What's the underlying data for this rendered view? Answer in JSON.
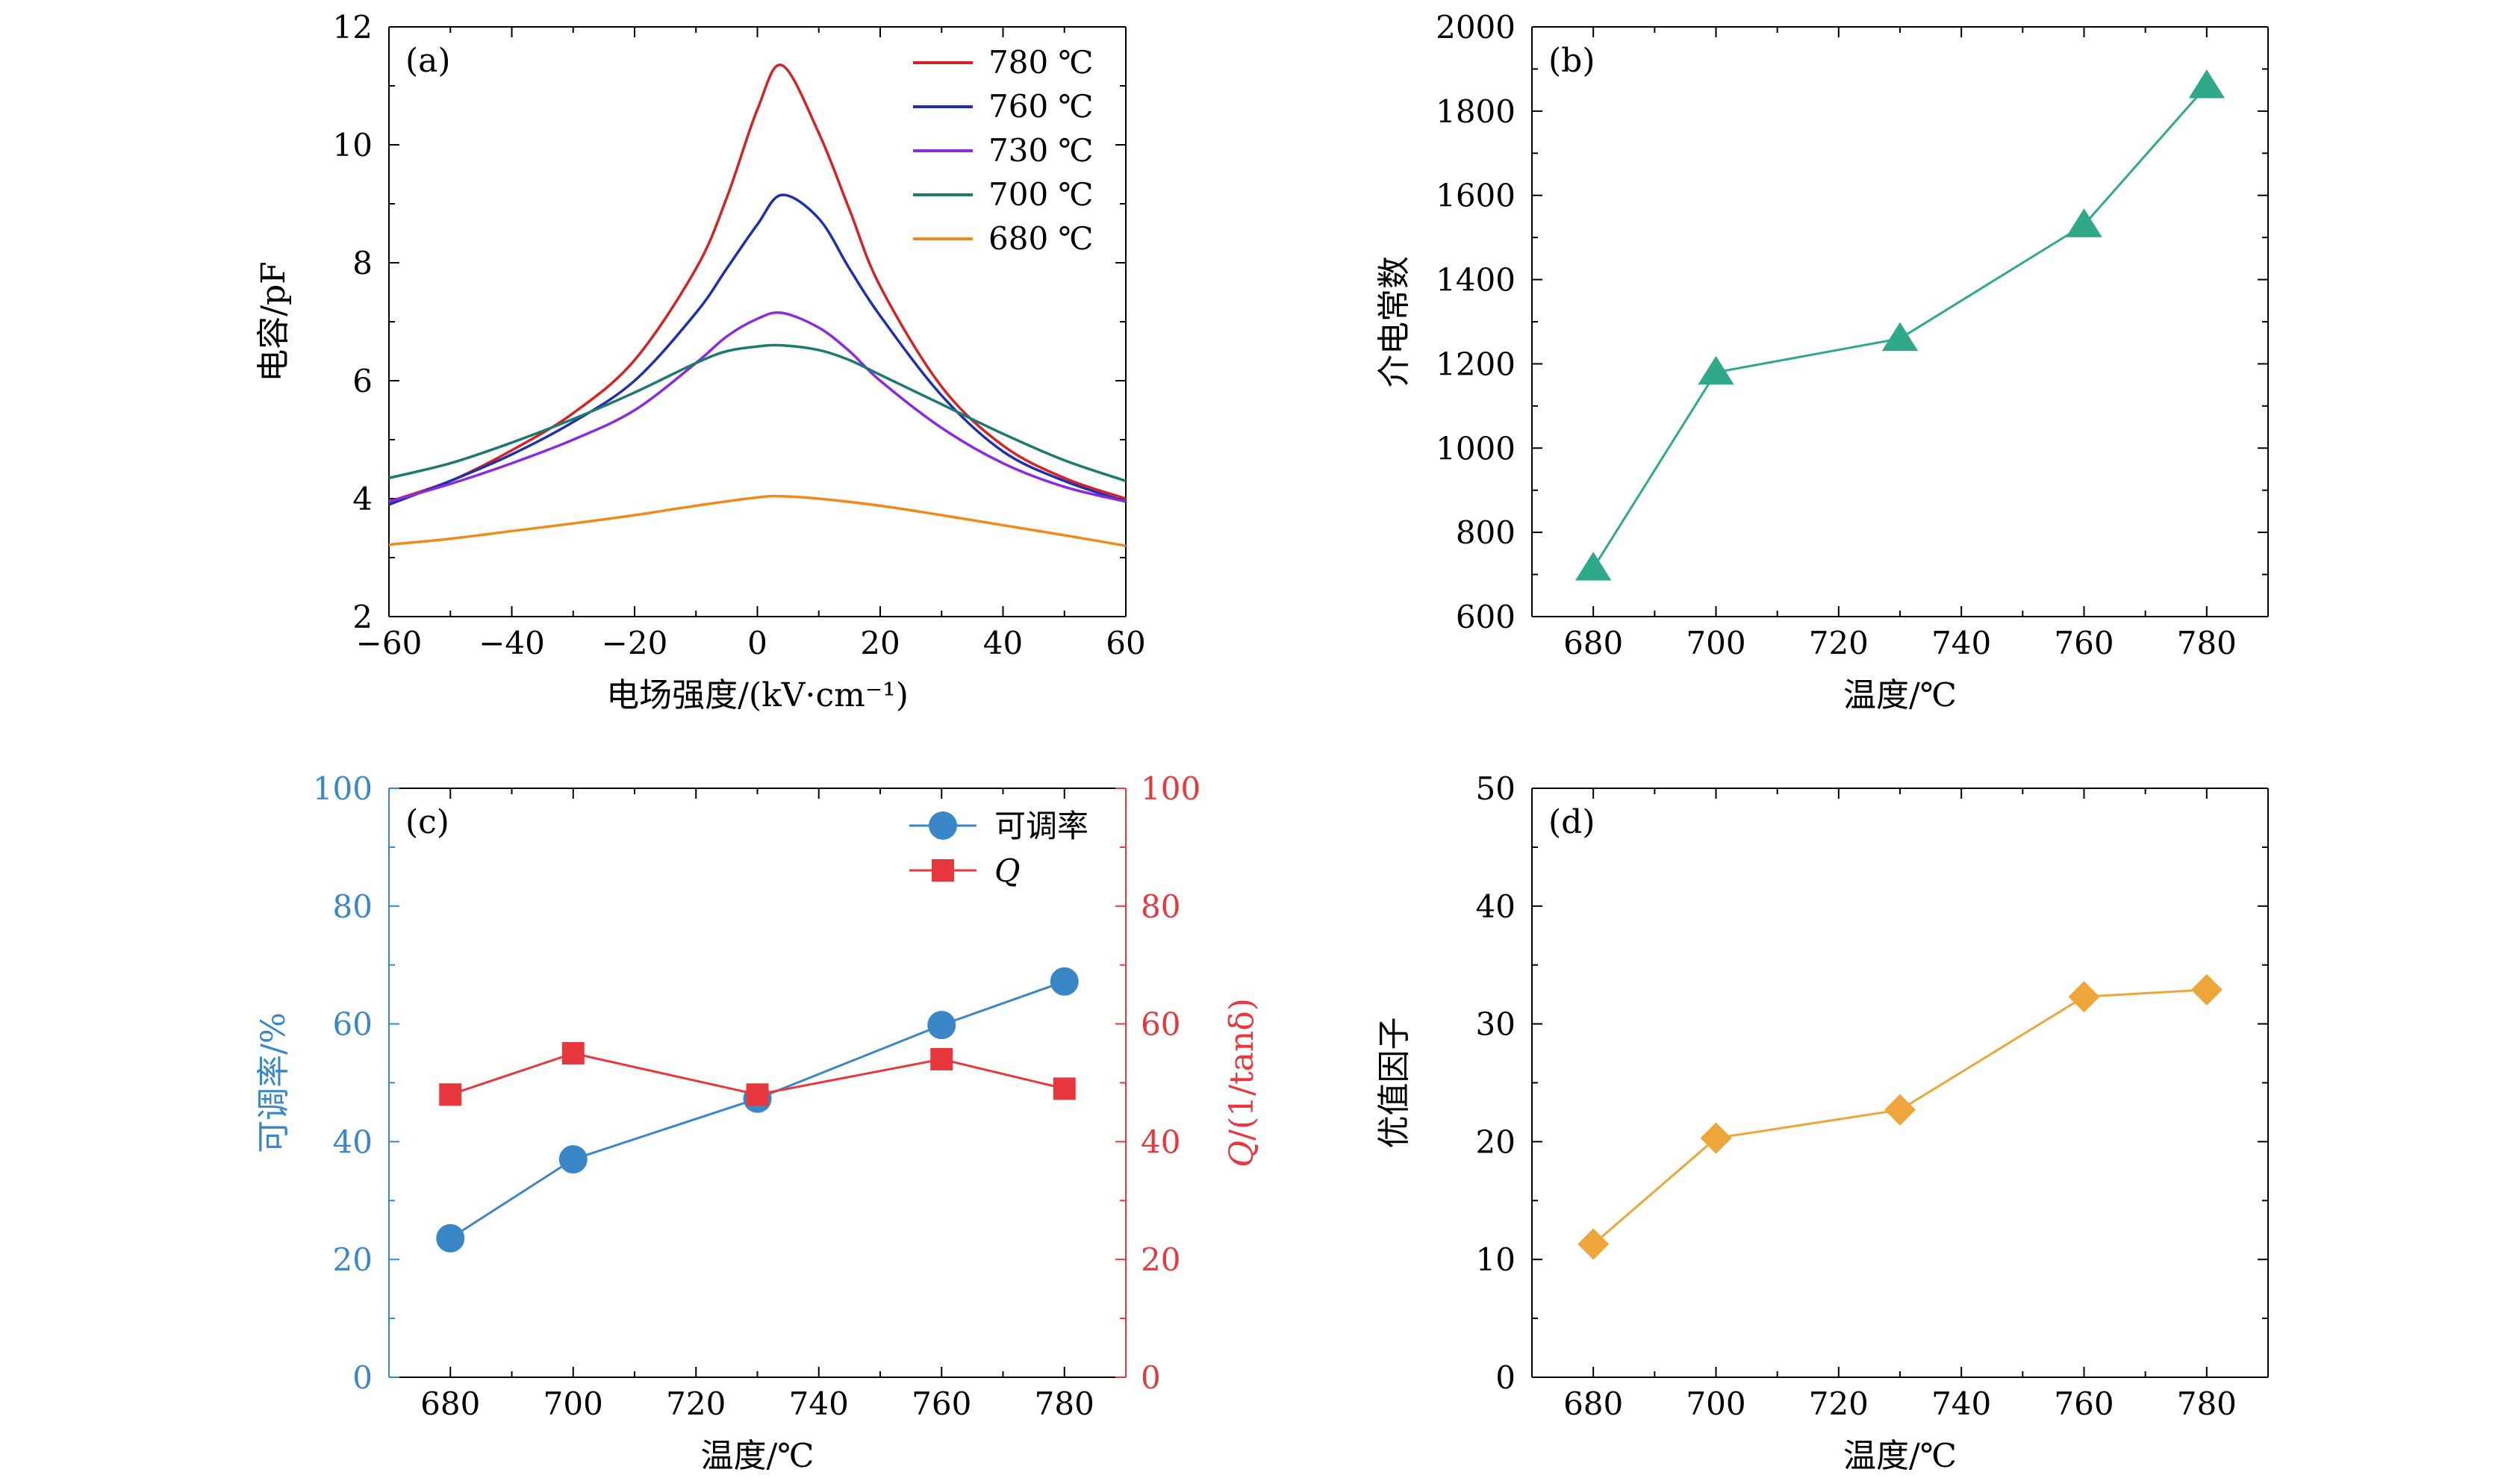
{
  "colors": {
    "axis": "#000000",
    "c780": "#d62222",
    "c760": "#1f2fb0",
    "c730": "#8a2be2",
    "c700": "#1c7a6e",
    "c680": "#f08a1c",
    "green": "#2fa98a",
    "blue": "#3a87c8",
    "red": "#e8373d",
    "orange": "#eea63a"
  },
  "chart_data": [
    {
      "id": "a",
      "type": "line",
      "panel_label": "(a)",
      "xlabel": "电场强度/(kV·cm⁻¹)",
      "ylabel": "电容/pF",
      "xlim": [
        -60,
        60
      ],
      "ylim": [
        2,
        12
      ],
      "xticks": [
        -60,
        -40,
        -20,
        0,
        20,
        40,
        60
      ],
      "xtick_labels": [
        "−60",
        "−40",
        "−20",
        "0",
        "20",
        "40",
        "60"
      ],
      "yticks": [
        2,
        4,
        6,
        8,
        10,
        12
      ],
      "ytick_labels": [
        "2",
        "4",
        "6",
        "8",
        "10",
        "12"
      ],
      "legend_position": "top-right",
      "series": [
        {
          "name": "780 ℃",
          "color_key": "c780",
          "x": [
            -60,
            -50,
            -40,
            -30,
            -20,
            -10,
            -5,
            0,
            4,
            10,
            15,
            20,
            30,
            40,
            50,
            60
          ],
          "y": [
            3.95,
            4.3,
            4.82,
            5.45,
            6.35,
            7.9,
            9.1,
            10.6,
            11.35,
            10.2,
            8.9,
            7.6,
            5.9,
            4.9,
            4.35,
            4.0
          ]
        },
        {
          "name": "760 ℃",
          "color_key": "c760",
          "x": [
            -60,
            -50,
            -40,
            -30,
            -20,
            -10,
            -5,
            0,
            4,
            10,
            15,
            20,
            30,
            40,
            50,
            60
          ],
          "y": [
            3.9,
            4.3,
            4.75,
            5.3,
            6.0,
            7.15,
            7.9,
            8.65,
            9.15,
            8.75,
            7.9,
            7.1,
            5.75,
            4.8,
            4.3,
            3.95
          ]
        },
        {
          "name": "730 ℃",
          "color_key": "c730",
          "x": [
            -60,
            -50,
            -40,
            -30,
            -20,
            -10,
            -5,
            0,
            4,
            10,
            15,
            20,
            30,
            40,
            50,
            60
          ],
          "y": [
            3.95,
            4.25,
            4.6,
            5.0,
            5.5,
            6.3,
            6.75,
            7.05,
            7.15,
            6.9,
            6.5,
            6.0,
            5.2,
            4.6,
            4.2,
            3.95
          ]
        },
        {
          "name": "700 ℃",
          "color_key": "c700",
          "x": [
            -60,
            -50,
            -40,
            -30,
            -20,
            -10,
            -5,
            0,
            4,
            10,
            15,
            20,
            30,
            40,
            50,
            60
          ],
          "y": [
            4.35,
            4.6,
            4.95,
            5.35,
            5.8,
            6.3,
            6.5,
            6.58,
            6.6,
            6.52,
            6.35,
            6.1,
            5.6,
            5.1,
            4.65,
            4.3
          ]
        },
        {
          "name": "680 ℃",
          "color_key": "c680",
          "x": [
            -60,
            -50,
            -40,
            -30,
            -20,
            -10,
            0,
            4,
            10,
            20,
            30,
            40,
            50,
            60
          ],
          "y": [
            3.22,
            3.32,
            3.45,
            3.58,
            3.72,
            3.88,
            4.02,
            4.04,
            4.0,
            3.88,
            3.72,
            3.55,
            3.38,
            3.2
          ]
        }
      ]
    },
    {
      "id": "b",
      "type": "line",
      "panel_label": "(b)",
      "xlabel": "温度/℃",
      "ylabel": "介电常数",
      "xlim": [
        670,
        790
      ],
      "ylim": [
        600,
        2000
      ],
      "xticks": [
        680,
        700,
        720,
        740,
        760,
        780
      ],
      "xtick_labels": [
        "680",
        "700",
        "720",
        "740",
        "760",
        "780"
      ],
      "yticks": [
        600,
        800,
        1000,
        1200,
        1400,
        1600,
        1800,
        2000
      ],
      "ytick_labels": [
        "600",
        "800",
        "1000",
        "1200",
        "1400",
        "1600",
        "1800",
        "2000"
      ],
      "marker": "triangle",
      "series": [
        {
          "color_key": "green",
          "x": [
            680,
            700,
            730,
            760,
            780
          ],
          "y": [
            715,
            1180,
            1260,
            1530,
            1860
          ]
        }
      ]
    },
    {
      "id": "c",
      "type": "line",
      "panel_label": "(c)",
      "xlabel": "温度/℃",
      "ylabel": "可调率/%",
      "ylabel_right_italic": "Q",
      "ylabel_right_rest": "/(1/tanδ)",
      "xlim": [
        670,
        790
      ],
      "ylim": [
        0,
        100
      ],
      "ylim_right": [
        0,
        100
      ],
      "xticks": [
        680,
        700,
        720,
        740,
        760,
        780
      ],
      "xtick_labels": [
        "680",
        "700",
        "720",
        "740",
        "760",
        "780"
      ],
      "yticks": [
        0,
        20,
        40,
        60,
        80,
        100
      ],
      "ytick_labels": [
        "0",
        "20",
        "40",
        "60",
        "80",
        "100"
      ],
      "yticks_right": [
        0,
        20,
        40,
        60,
        80,
        100
      ],
      "ytick_labels_right": [
        "0",
        "20",
        "40",
        "60",
        "80",
        "100"
      ],
      "legend_position": "top-right",
      "series": [
        {
          "name": "可调率",
          "axis": "left",
          "marker": "circle",
          "color_key": "blue",
          "x": [
            680,
            700,
            730,
            760,
            780
          ],
          "y": [
            23.6,
            37.0,
            47.3,
            59.8,
            67.2
          ]
        },
        {
          "name": "Q",
          "axis": "right",
          "marker": "square",
          "color_key": "red",
          "x": [
            680,
            700,
            730,
            760,
            780
          ],
          "y": [
            48,
            55,
            48,
            54,
            49
          ]
        }
      ]
    },
    {
      "id": "d",
      "type": "line",
      "panel_label": "(d)",
      "xlabel": "温度/℃",
      "ylabel": "优值因子",
      "xlim": [
        670,
        790
      ],
      "ylim": [
        0,
        50
      ],
      "xticks": [
        680,
        700,
        720,
        740,
        760,
        780
      ],
      "xtick_labels": [
        "680",
        "700",
        "720",
        "740",
        "760",
        "780"
      ],
      "yticks": [
        0,
        10,
        20,
        30,
        40,
        50
      ],
      "ytick_labels": [
        "0",
        "10",
        "20",
        "30",
        "40",
        "50"
      ],
      "marker": "diamond",
      "series": [
        {
          "color_key": "orange",
          "x": [
            680,
            700,
            730,
            760,
            780
          ],
          "y": [
            11.3,
            20.3,
            22.7,
            32.3,
            32.9
          ]
        }
      ]
    }
  ]
}
